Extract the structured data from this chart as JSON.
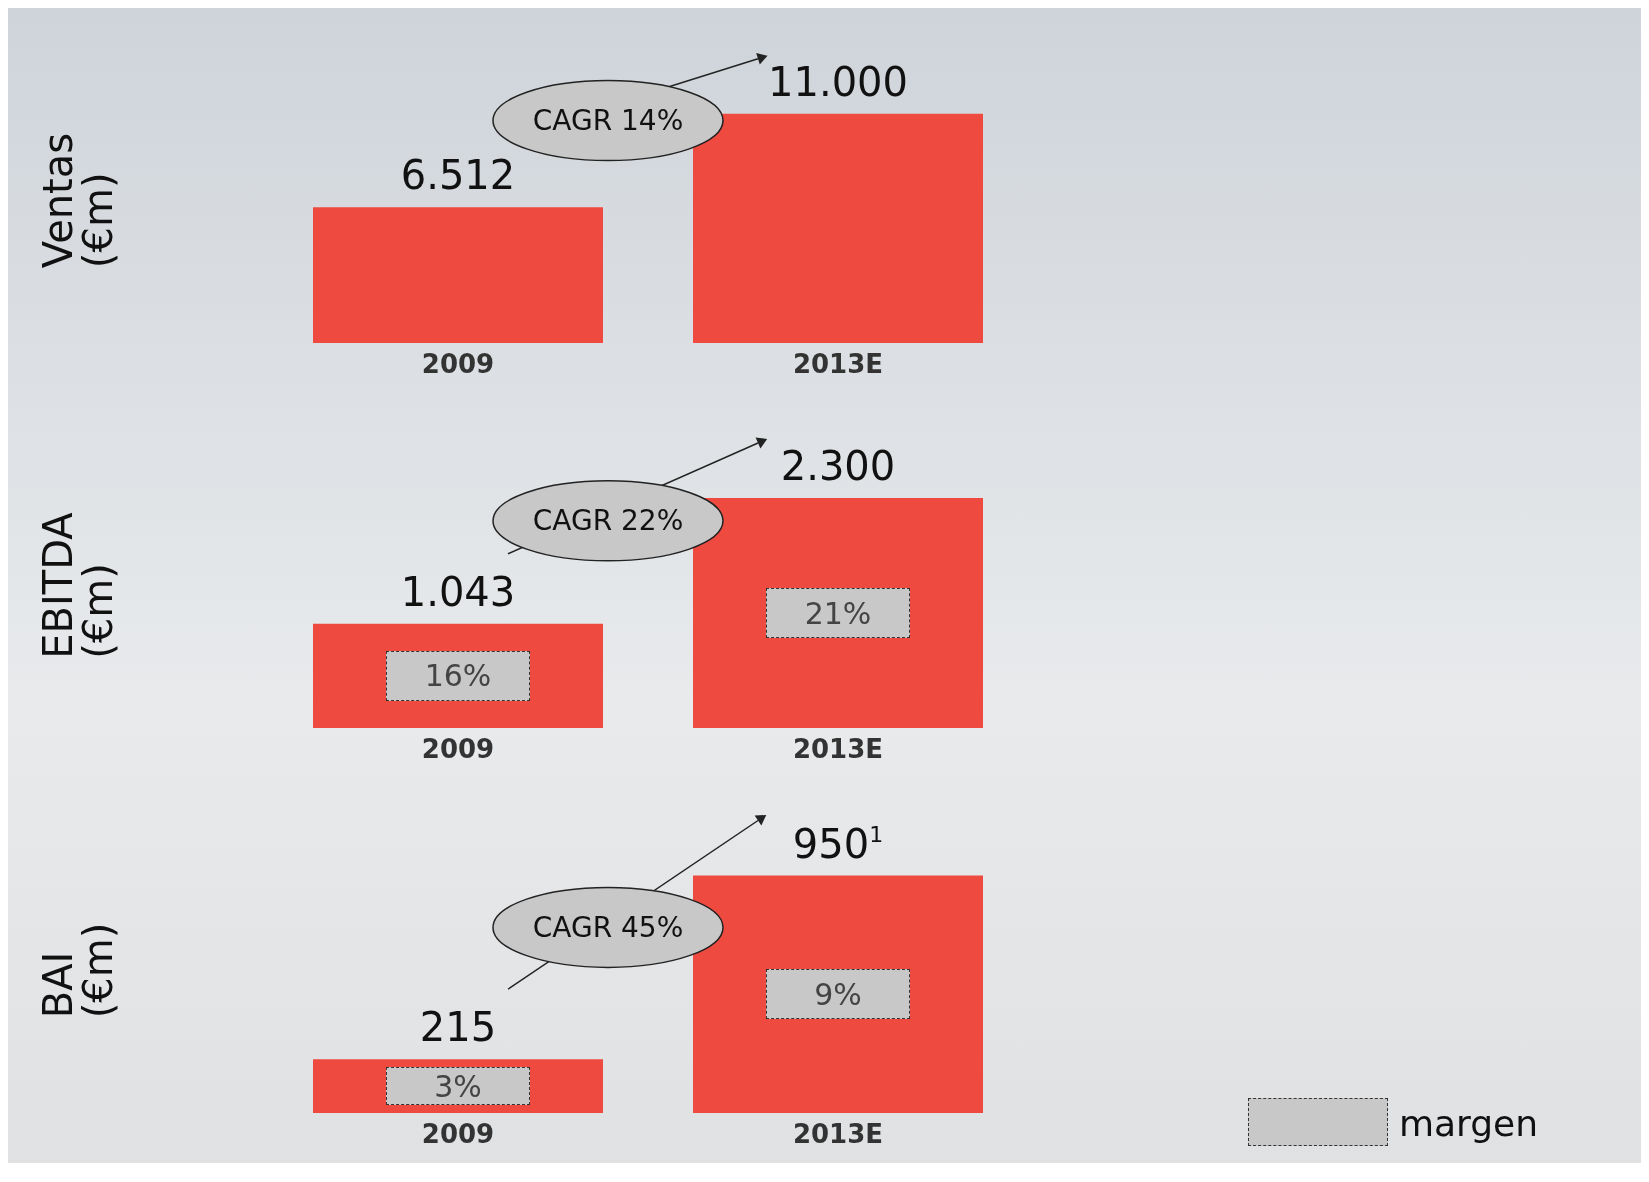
{
  "chart_data": [
    {
      "type": "bar",
      "ylabel": "Ventas\n(€m)",
      "categories": [
        "2009",
        "2013E"
      ],
      "color": "#ef4a40",
      "values": [
        6512,
        11000
      ],
      "value_labels": [
        "6.512",
        "11.000"
      ],
      "annotations": [
        "CAGR 14%"
      ]
    },
    {
      "type": "bar",
      "ylabel": "EBITDA\n(€m)",
      "categories": [
        "2009",
        "2013E"
      ],
      "color": "#ef4a40",
      "values": [
        1043,
        2300
      ],
      "value_labels": [
        "1.043",
        "2.300"
      ],
      "annotations": [
        "CAGR 22%",
        "16%",
        "21%"
      ]
    },
    {
      "type": "bar",
      "ylabel": "BAI\n(€m)",
      "categories": [
        "2009",
        "2013E"
      ],
      "color": "#ef4a40",
      "values": [
        215,
        950
      ],
      "value_labels": [
        "215",
        "950$^{1}$"
      ],
      "annotations": [
        "CAGR 45%",
        "3%",
        "9%",
        "margen"
      ]
    }
  ]
}
